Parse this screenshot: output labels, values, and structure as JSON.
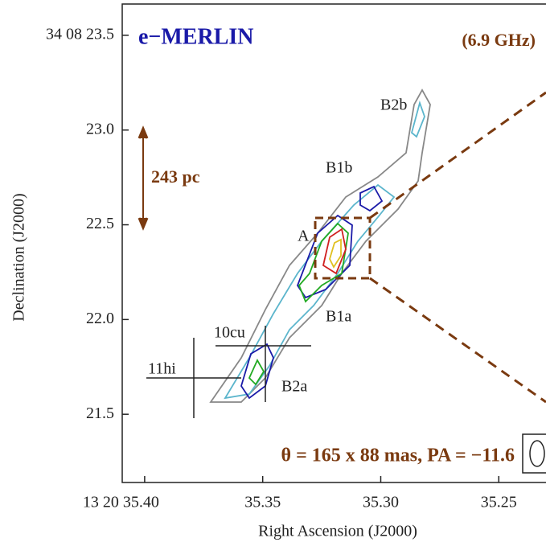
{
  "chart_data": {
    "type": "contour",
    "title": "e−MERLIN",
    "subtitle": "(6.9 GHz)",
    "x_label": "Right Ascension (J2000)",
    "y_label": "Declination (J2000)",
    "xlim": [
      35.4095,
      35.23
    ],
    "ylim": [
      21.14,
      23.665
    ],
    "xticks": [
      {
        "value": 35.4,
        "label": "13 20 35.40"
      },
      35.35,
      {
        "value": 35.3,
        "label": "35.30"
      },
      35.25
    ],
    "yticks": [
      {
        "value": 23.5,
        "label": "34 08 23.5"
      },
      {
        "value": 23.0,
        "label": "23.0"
      },
      22.5,
      {
        "value": 22.0,
        "label": "22.0"
      },
      21.5
    ],
    "scale_bar": "243 pc",
    "component_labels": [
      "B2b",
      "B1b",
      "A",
      "B1a",
      "B2a",
      "10cu",
      "11hi"
    ],
    "beam": "θ = 165 x 88 mas, PA = −11.6"
  }
}
